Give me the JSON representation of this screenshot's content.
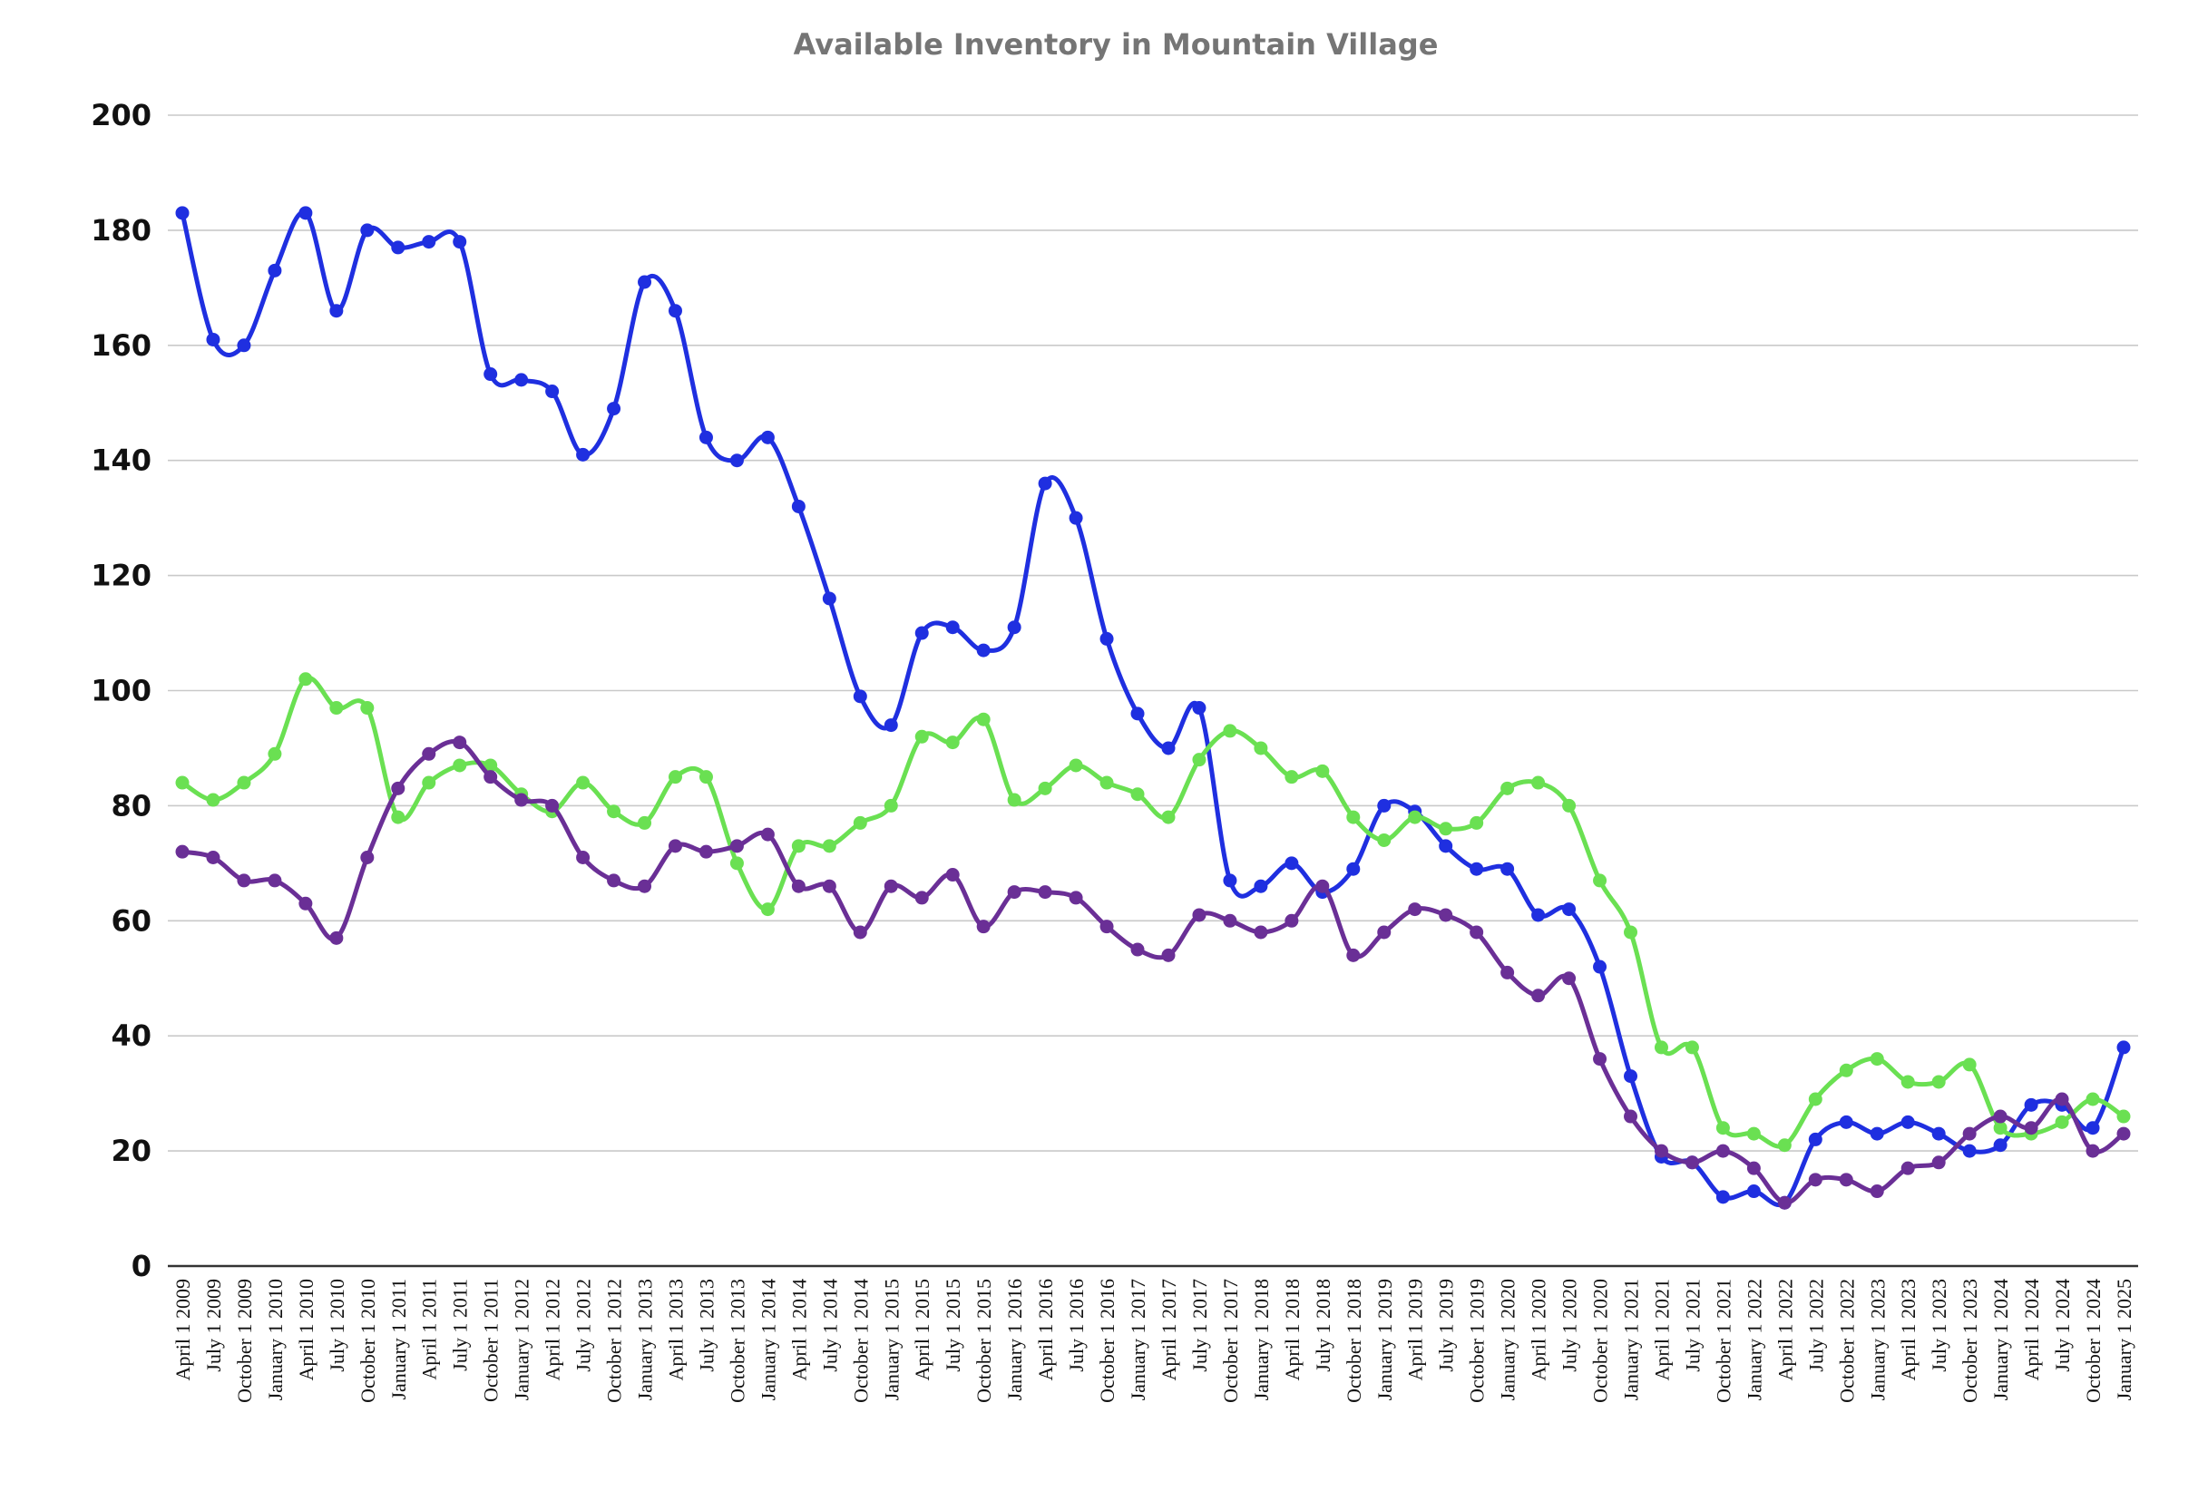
{
  "chart_data": {
    "type": "line",
    "title": "Available Inventory in Mountain Village",
    "xlabel": "",
    "ylabel": "",
    "ylim": [
      0,
      200
    ],
    "yticks": [
      0,
      20,
      40,
      60,
      80,
      100,
      120,
      140,
      160,
      180,
      200
    ],
    "grid": true,
    "legend": "none",
    "categories": [
      "April 1 2009",
      "July 1 2009",
      "October 1 2009",
      "January 1 2010",
      "April 1 2010",
      "July 1 2010",
      "October 1 2010",
      "January 1 2011",
      "April 1 2011",
      "July 1 2011",
      "October 1 2011",
      "January 1 2012",
      "April 1 2012",
      "July 1 2012",
      "October 1 2012",
      "January 1 2013",
      "April 1 2013",
      "July 1 2013",
      "October 1 2013",
      "January 1 2014",
      "April 1 2014",
      "July 1 2014",
      "October 1 2014",
      "January 1 2015",
      "April 1 2015",
      "July 1 2015",
      "October 1 2015",
      "January 1 2016",
      "April 1 2016",
      "July 1 2016",
      "October 1 2016",
      "January 1 2017",
      "April 1 2017",
      "July 1 2017",
      "October 1 2017",
      "January 1 2018",
      "April 1 2018",
      "July 1 2018",
      "October 1 2018",
      "January 1 2019",
      "April 1 2019",
      "July 1 2019",
      "October 1 2019",
      "January 1 2020",
      "April 1 2020",
      "July 1 2020",
      "October 1 2020",
      "January 1 2021",
      "April 1 2021",
      "July 1 2021",
      "October 1 2021",
      "January 1 2022",
      "April 1 2022",
      "July 1 2022",
      "October 1 2022",
      "January 1 2023",
      "April 1 2023",
      "July 1 2023",
      "October 1 2023",
      "January 1 2024",
      "April 1 2024",
      "July 1 2024",
      "October 1 2024",
      "January 1 2025"
    ],
    "series": [
      {
        "color": "#1f2fe0",
        "values": [
          183,
          161,
          160,
          173,
          183,
          166,
          180,
          177,
          178,
          178,
          155,
          154,
          152,
          141,
          149,
          171,
          166,
          144,
          140,
          144,
          132,
          116,
          99,
          94,
          110,
          111,
          107,
          111,
          136,
          130,
          109,
          96,
          90,
          97,
          67,
          66,
          70,
          65,
          69,
          80,
          79,
          73,
          69,
          69,
          61,
          62,
          52,
          33,
          19,
          18,
          12,
          13,
          11,
          22,
          25,
          23,
          25,
          23,
          20,
          21,
          28,
          28,
          24,
          38
        ]
      },
      {
        "color": "#6ae052",
        "values": [
          84,
          81,
          84,
          89,
          102,
          97,
          97,
          78,
          84,
          87,
          87,
          82,
          79,
          84,
          79,
          77,
          85,
          85,
          70,
          62,
          73,
          73,
          77,
          80,
          92,
          91,
          95,
          81,
          83,
          87,
          84,
          82,
          78,
          88,
          93,
          90,
          85,
          86,
          78,
          74,
          78,
          76,
          77,
          83,
          84,
          80,
          67,
          58,
          38,
          38,
          24,
          23,
          21,
          29,
          34,
          36,
          32,
          32,
          35,
          24,
          23,
          25,
          29,
          26
        ]
      },
      {
        "color": "#6a2f96",
        "values": [
          72,
          71,
          67,
          67,
          63,
          57,
          71,
          83,
          89,
          91,
          85,
          81,
          80,
          71,
          67,
          66,
          73,
          72,
          73,
          75,
          66,
          66,
          58,
          66,
          64,
          68,
          59,
          65,
          65,
          64,
          59,
          55,
          54,
          61,
          60,
          58,
          60,
          66,
          54,
          58,
          62,
          61,
          58,
          51,
          47,
          50,
          36,
          26,
          20,
          18,
          20,
          17,
          11,
          15,
          15,
          13,
          17,
          18,
          23,
          26,
          24,
          29,
          20,
          23
        ]
      }
    ]
  }
}
